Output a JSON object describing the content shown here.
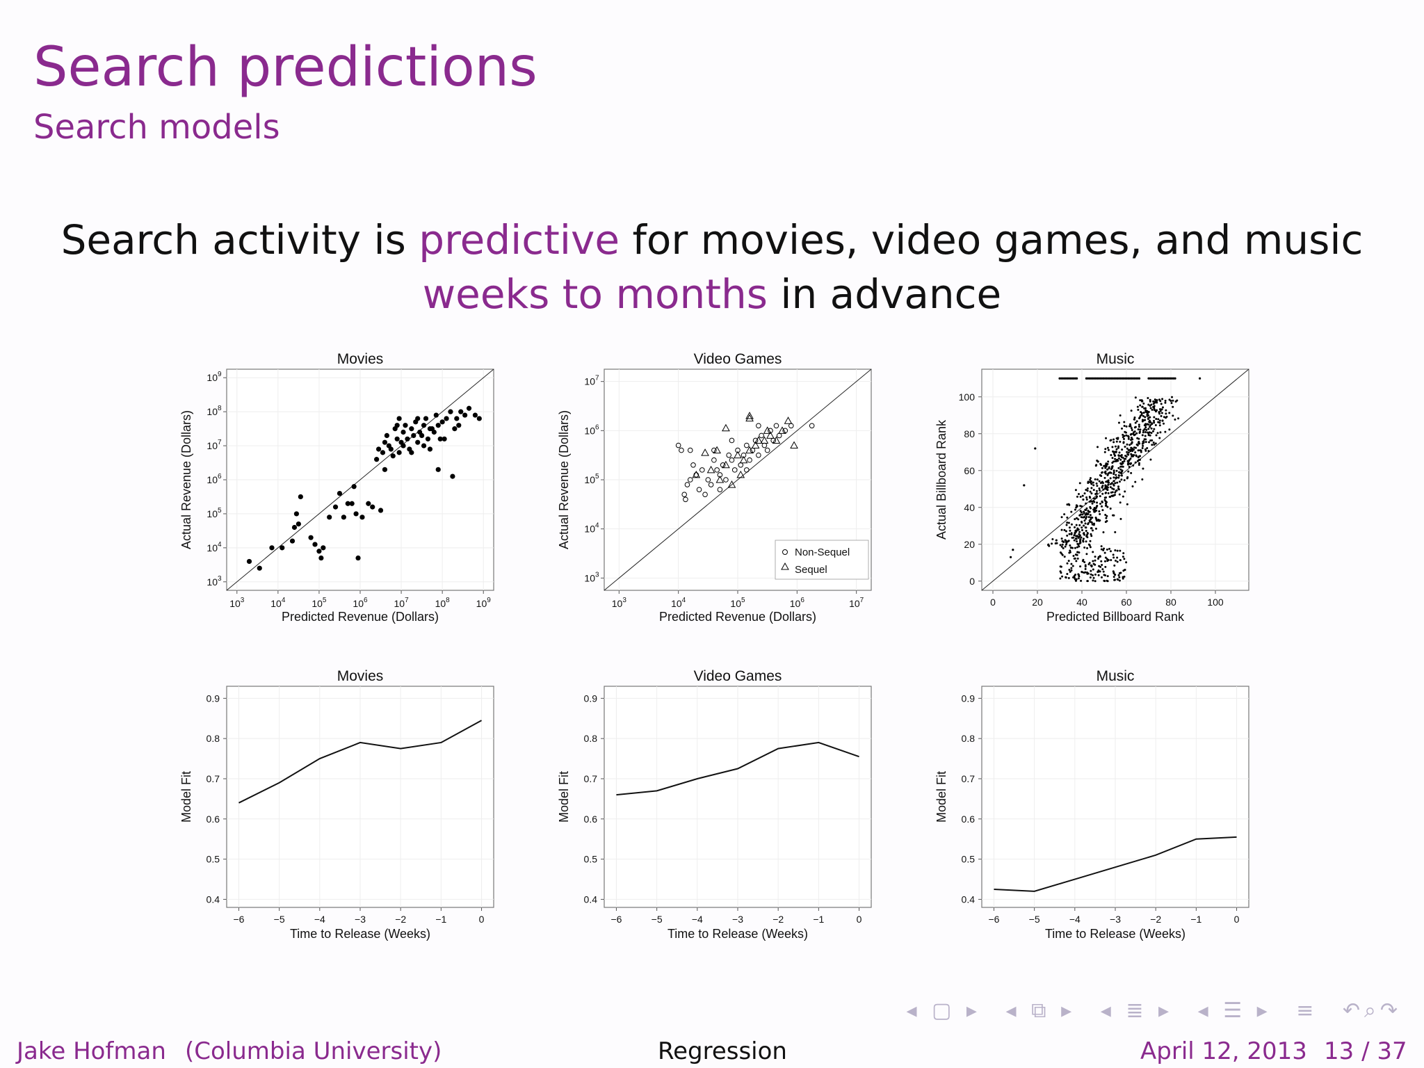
{
  "slide": {
    "title": "Search predictions",
    "subtitle": "Search models",
    "headline": {
      "line1_pre": "Search activity is ",
      "line1_highlight": "predictive",
      "line1_post": " for movies, video games, and music",
      "line2_highlight": "weeks to months",
      "line2_post": " in advance"
    }
  },
  "nav_icons": [
    "left-arrow-icon",
    "frame-icon",
    "right-arrow-icon",
    "left-arrow-icon",
    "subsection-icon",
    "right-arrow-icon",
    "left-arrow-icon",
    "section-icon",
    "right-arrow-icon",
    "left-arrow-icon",
    "outline-icon",
    "right-arrow-icon",
    "list-icon",
    "undo-icon",
    "zoom-icon",
    "redo-icon"
  ],
  "footer": {
    "author": "Jake Hofman",
    "institution": "(Columbia University)",
    "center": "Regression",
    "date": "April 12, 2013",
    "page": "13 / 37"
  },
  "colors": {
    "accent": "#8a2a8e",
    "text": "#111111"
  },
  "chart_data": [
    {
      "type": "scatter",
      "title": "Movies",
      "xlabel": "Predicted Revenue (Dollars)",
      "ylabel": "Actual Revenue (Dollars)",
      "xscale": "log10",
      "yscale": "log10",
      "xticks": [
        "10^3",
        "10^4",
        "10^5",
        "10^6",
        "10^7",
        "10^8",
        "10^9"
      ],
      "yticks": [
        "10^3",
        "10^4",
        "10^5",
        "10^6",
        "10^7",
        "10^8",
        "10^9"
      ],
      "xlim_exp": [
        3,
        9
      ],
      "ylim_exp": [
        3,
        9
      ],
      "diagonal": true,
      "marker": "filled-circle",
      "points_log10": [
        [
          3.3,
          3.6
        ],
        [
          3.55,
          3.4
        ],
        [
          3.85,
          4.0
        ],
        [
          4.1,
          4.0
        ],
        [
          4.35,
          4.2
        ],
        [
          4.4,
          4.6
        ],
        [
          4.5,
          4.7
        ],
        [
          4.45,
          5.0
        ],
        [
          4.55,
          5.5
        ],
        [
          4.8,
          4.3
        ],
        [
          4.9,
          4.1
        ],
        [
          5.0,
          3.9
        ],
        [
          5.05,
          3.7
        ],
        [
          5.1,
          4.0
        ],
        [
          5.25,
          4.9
        ],
        [
          5.4,
          5.2
        ],
        [
          5.5,
          5.6
        ],
        [
          5.6,
          4.9
        ],
        [
          5.7,
          5.3
        ],
        [
          5.8,
          5.3
        ],
        [
          5.85,
          5.8
        ],
        [
          5.9,
          5.0
        ],
        [
          5.95,
          3.7
        ],
        [
          6.3,
          5.2
        ],
        [
          6.5,
          5.1
        ],
        [
          6.4,
          6.6
        ],
        [
          6.55,
          6.8
        ],
        [
          6.6,
          7.1
        ],
        [
          6.65,
          7.3
        ],
        [
          6.7,
          7.0
        ],
        [
          6.8,
          6.7
        ],
        [
          6.85,
          7.5
        ],
        [
          6.9,
          7.2
        ],
        [
          6.95,
          6.8
        ],
        [
          7.0,
          7.1
        ],
        [
          7.05,
          7.4
        ],
        [
          7.1,
          7.6
        ],
        [
          7.15,
          7.2
        ],
        [
          7.2,
          6.9
        ],
        [
          7.25,
          7.5
        ],
        [
          7.3,
          7.3
        ],
        [
          7.35,
          7.7
        ],
        [
          7.4,
          7.1
        ],
        [
          7.45,
          7.4
        ],
        [
          7.5,
          7.3
        ],
        [
          7.55,
          7.6
        ],
        [
          7.6,
          7.8
        ],
        [
          7.65,
          7.2
        ],
        [
          7.7,
          6.9
        ],
        [
          7.75,
          7.5
        ],
        [
          7.8,
          7.4
        ],
        [
          7.85,
          7.9
        ],
        [
          7.9,
          7.6
        ],
        [
          7.95,
          7.2
        ],
        [
          8.0,
          7.7
        ],
        [
          8.1,
          7.8
        ],
        [
          8.2,
          8.0
        ],
        [
          8.3,
          7.5
        ],
        [
          8.35,
          7.8
        ],
        [
          8.45,
          8.0
        ],
        [
          8.55,
          7.9
        ],
        [
          8.65,
          8.1
        ],
        [
          8.8,
          7.9
        ],
        [
          8.9,
          7.8
        ],
        [
          6.2,
          5.3
        ],
        [
          6.05,
          4.9
        ],
        [
          7.9,
          6.3
        ],
        [
          8.25,
          6.1
        ],
        [
          6.75,
          6.9
        ],
        [
          7.05,
          7.0
        ],
        [
          6.6,
          6.3
        ],
        [
          6.9,
          7.6
        ],
        [
          7.25,
          6.8
        ],
        [
          7.4,
          7.8
        ],
        [
          7.7,
          7.5
        ],
        [
          8.05,
          7.2
        ],
        [
          8.4,
          7.6
        ],
        [
          6.45,
          6.9
        ],
        [
          6.95,
          7.8
        ],
        [
          7.55,
          7.0
        ]
      ]
    },
    {
      "type": "scatter",
      "title": "Video Games",
      "xlabel": "Predicted Revenue (Dollars)",
      "ylabel": "Actual Revenue (Dollars)",
      "xscale": "log10",
      "yscale": "log10",
      "xticks": [
        "10^3",
        "10^4",
        "10^5",
        "10^6",
        "10^7"
      ],
      "yticks": [
        "10^3",
        "10^4",
        "10^5",
        "10^6",
        "10^7"
      ],
      "xlim_exp": [
        3,
        7
      ],
      "ylim_exp": [
        3,
        7
      ],
      "diagonal": true,
      "legend": [
        "Non-Sequel",
        "Sequel"
      ],
      "legend_position": "bottom-right",
      "points_log10_nonsequel": [
        [
          4.1,
          4.7
        ],
        [
          4.12,
          4.6
        ],
        [
          4.15,
          4.9
        ],
        [
          4.2,
          5.0
        ],
        [
          4.25,
          5.3
        ],
        [
          4.3,
          5.1
        ],
        [
          4.35,
          4.8
        ],
        [
          4.4,
          5.2
        ],
        [
          4.5,
          5.0
        ],
        [
          4.55,
          4.9
        ],
        [
          4.6,
          5.4
        ],
        [
          4.65,
          5.2
        ],
        [
          4.7,
          5.1
        ],
        [
          4.75,
          5.3
        ],
        [
          4.8,
          5.0
        ],
        [
          4.85,
          5.5
        ],
        [
          4.9,
          5.4
        ],
        [
          4.95,
          5.2
        ],
        [
          5.0,
          5.6
        ],
        [
          5.05,
          5.3
        ],
        [
          5.1,
          5.5
        ],
        [
          5.15,
          5.7
        ],
        [
          5.2,
          5.4
        ],
        [
          5.25,
          5.6
        ],
        [
          5.3,
          5.8
        ],
        [
          5.35,
          5.5
        ],
        [
          5.4,
          5.9
        ],
        [
          5.45,
          5.7
        ],
        [
          5.5,
          5.6
        ],
        [
          5.55,
          6.0
        ],
        [
          5.6,
          5.8
        ],
        [
          5.65,
          6.1
        ],
        [
          5.7,
          5.9
        ],
        [
          5.8,
          6.0
        ],
        [
          5.9,
          6.1
        ],
        [
          6.25,
          6.1
        ],
        [
          4.05,
          5.6
        ],
        [
          4.0,
          5.7
        ],
        [
          4.2,
          5.6
        ],
        [
          4.6,
          5.6
        ],
        [
          4.9,
          5.8
        ],
        [
          5.15,
          5.2
        ],
        [
          5.35,
          6.1
        ],
        [
          4.45,
          4.7
        ],
        [
          4.7,
          4.8
        ]
      ],
      "points_log10_sequel": [
        [
          4.3,
          5.1
        ],
        [
          4.55,
          5.2
        ],
        [
          4.7,
          5.0
        ],
        [
          4.8,
          5.3
        ],
        [
          4.9,
          4.9
        ],
        [
          5.0,
          5.5
        ],
        [
          5.1,
          5.4
        ],
        [
          5.2,
          5.6
        ],
        [
          5.3,
          5.7
        ],
        [
          5.45,
          5.8
        ],
        [
          5.55,
          5.9
        ],
        [
          5.65,
          5.8
        ],
        [
          5.75,
          6.0
        ],
        [
          5.85,
          6.2
        ],
        [
          5.95,
          5.7
        ],
        [
          4.45,
          5.55
        ],
        [
          4.65,
          5.6
        ],
        [
          4.8,
          6.05
        ],
        [
          5.2,
          6.25
        ],
        [
          5.2,
          6.3
        ],
        [
          5.05,
          5.1
        ],
        [
          5.35,
          5.8
        ],
        [
          5.5,
          6.0
        ]
      ]
    },
    {
      "type": "scatter",
      "title": "Music",
      "xlabel": "Predicted Billboard Rank",
      "ylabel": "Actual Billboard Rank",
      "xticks": [
        "0",
        "20",
        "40",
        "60",
        "80",
        "100"
      ],
      "yticks": [
        "0",
        "20",
        "40",
        "60",
        "80",
        "100"
      ],
      "xlim": [
        -5,
        115
      ],
      "ylim": [
        -5,
        115
      ],
      "diagonal": true,
      "marker": "small-dot",
      "top_row_y": 110,
      "top_row_x_ranges": [
        [
          30,
          38
        ],
        [
          42,
          66
        ],
        [
          70,
          82
        ]
      ],
      "top_row_x_extra": [
        93
      ],
      "cloud": {
        "x_center": 55,
        "x_spread": 25,
        "n": 900,
        "slope_band": true
      },
      "outliers": [
        [
          8,
          13
        ],
        [
          9,
          17
        ],
        [
          14,
          52
        ],
        [
          19,
          72
        ]
      ]
    },
    {
      "type": "line",
      "title": "Movies",
      "xlabel": "Time to Release (Weeks)",
      "ylabel": "Model Fit",
      "x": [
        -6,
        -5,
        -4,
        -3,
        -2,
        -1,
        0
      ],
      "series": [
        {
          "values": [
            0.64,
            0.69,
            0.75,
            0.79,
            0.775,
            0.79,
            0.845
          ]
        }
      ],
      "xticks": [
        "-6",
        "-5",
        "-4",
        "-3",
        "-2",
        "-1",
        "0"
      ],
      "yticks": [
        "0.4",
        "0.5",
        "0.6",
        "0.7",
        "0.8",
        "0.9"
      ],
      "xlim": [
        -6.3,
        0.3
      ],
      "ylim": [
        0.38,
        0.93
      ]
    },
    {
      "type": "line",
      "title": "Video Games",
      "xlabel": "Time to Release (Weeks)",
      "ylabel": "Model Fit",
      "x": [
        -6,
        -5,
        -4,
        -3,
        -2,
        -1,
        0
      ],
      "series": [
        {
          "values": [
            0.66,
            0.67,
            0.7,
            0.725,
            0.775,
            0.79,
            0.755
          ]
        }
      ],
      "xticks": [
        "-6",
        "-5",
        "-4",
        "-3",
        "-2",
        "-1",
        "0"
      ],
      "yticks": [
        "0.4",
        "0.5",
        "0.6",
        "0.7",
        "0.8",
        "0.9"
      ],
      "xlim": [
        -6.3,
        0.3
      ],
      "ylim": [
        0.38,
        0.93
      ]
    },
    {
      "type": "line",
      "title": "Music",
      "xlabel": "Time to Release (Weeks)",
      "ylabel": "Model Fit",
      "x": [
        -6,
        -5,
        -4,
        -3,
        -2,
        -1,
        0
      ],
      "series": [
        {
          "values": [
            0.425,
            0.42,
            0.45,
            0.48,
            0.51,
            0.55,
            0.555
          ]
        }
      ],
      "xticks": [
        "-6",
        "-5",
        "-4",
        "-3",
        "-2",
        "-1",
        "0"
      ],
      "yticks": [
        "0.4",
        "0.5",
        "0.6",
        "0.7",
        "0.8",
        "0.9"
      ],
      "xlim": [
        -6.3,
        0.3
      ],
      "ylim": [
        0.38,
        0.93
      ]
    }
  ]
}
